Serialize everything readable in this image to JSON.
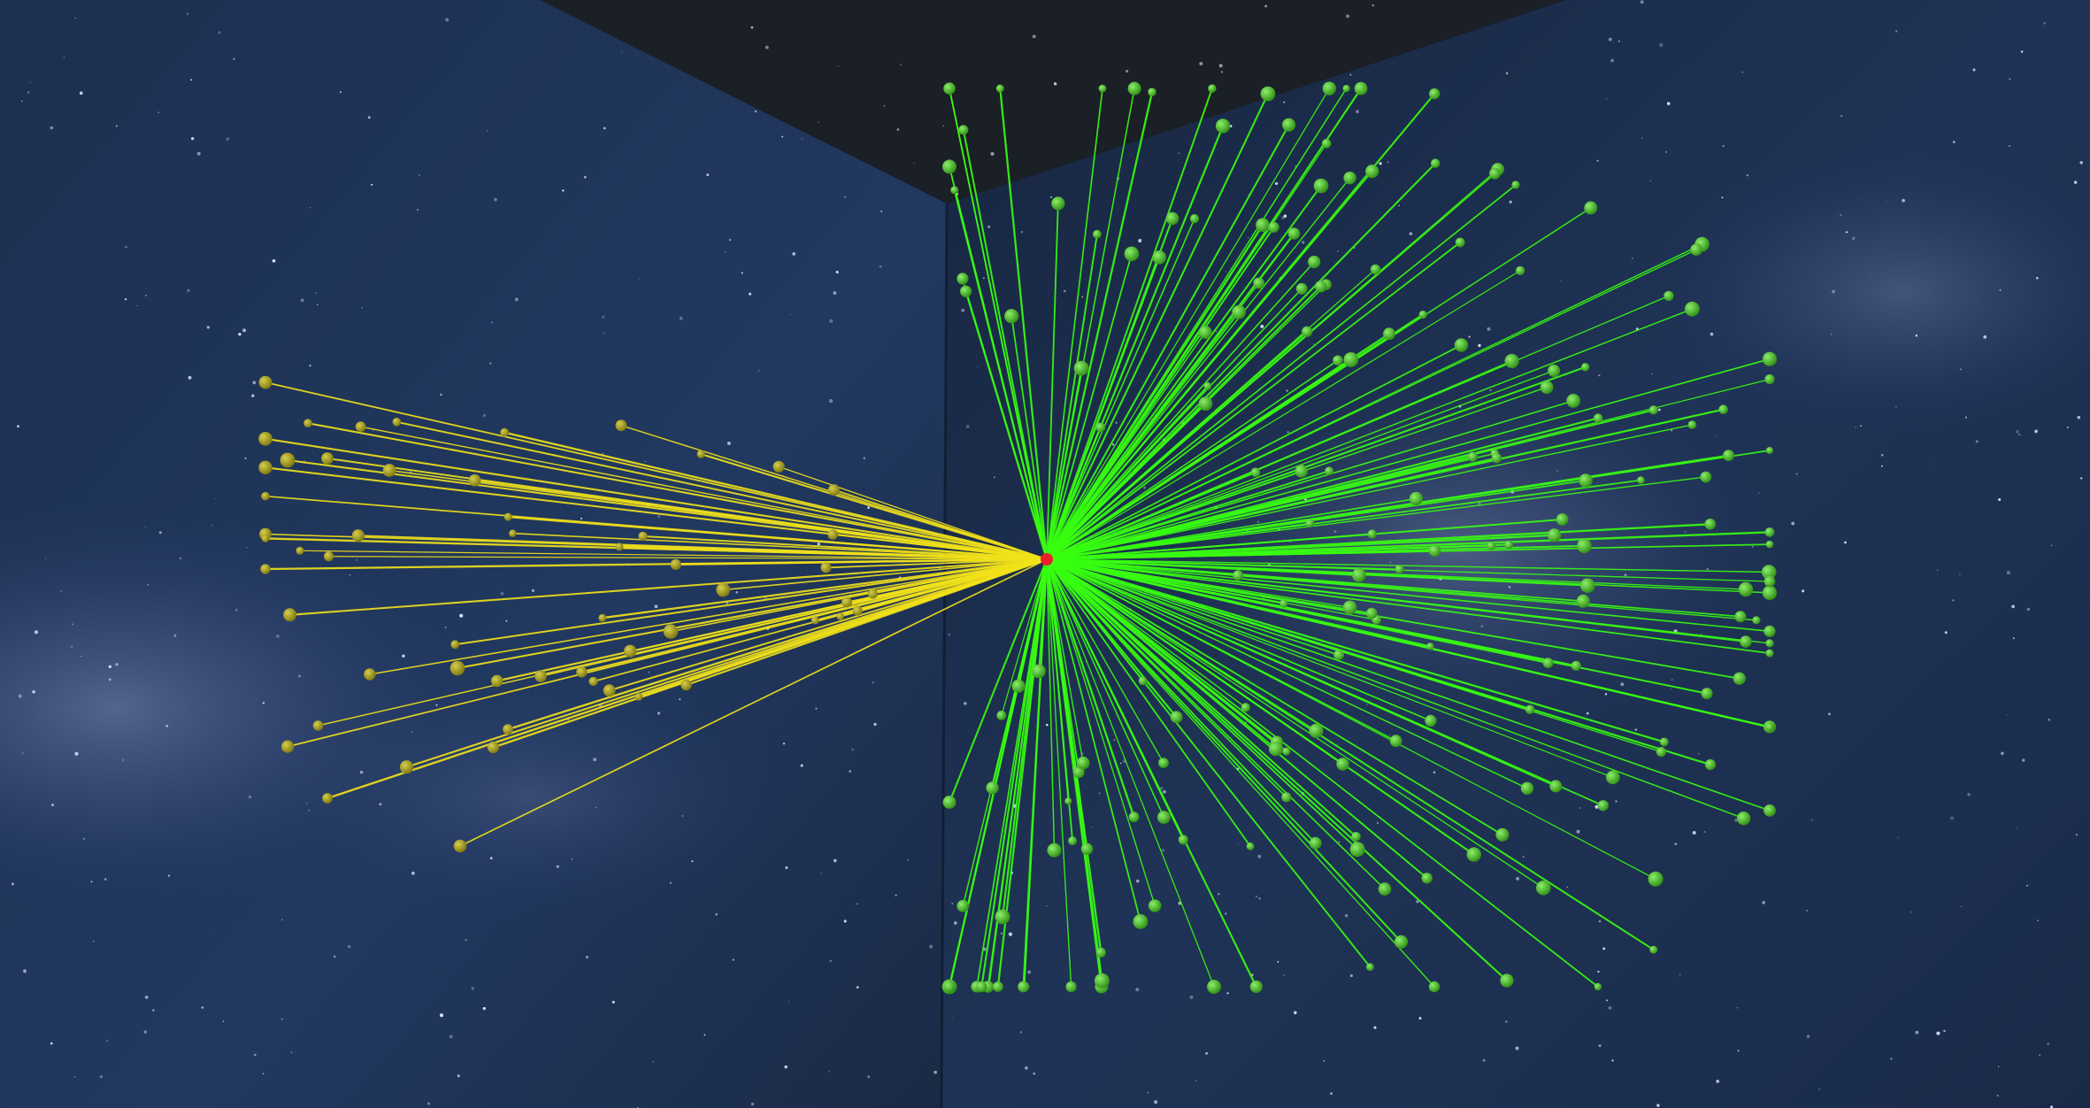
{
  "scene": {
    "colors": {
      "background": "#0e1a30",
      "ceiling": "#1b1f26",
      "wall_left": "#1e3152",
      "wall_right": "#1a2a48",
      "nebula": "#6c7aa6",
      "star": "#dfe8ff",
      "center_node": "#e8202a",
      "yellow_link": "#f2e21a",
      "yellow_node": "#9c961c",
      "green_link": "#38ff10",
      "green_node": "#3fae1e"
    },
    "icons": {
      "center": "hub-node-icon",
      "leaf": "sphere-node-icon"
    },
    "network": {
      "center_node": {
        "name": "center",
        "group": "hub"
      },
      "groups": [
        {
          "name": "yellow",
          "count": 52
        },
        {
          "name": "green",
          "count": 190
        }
      ]
    }
  }
}
